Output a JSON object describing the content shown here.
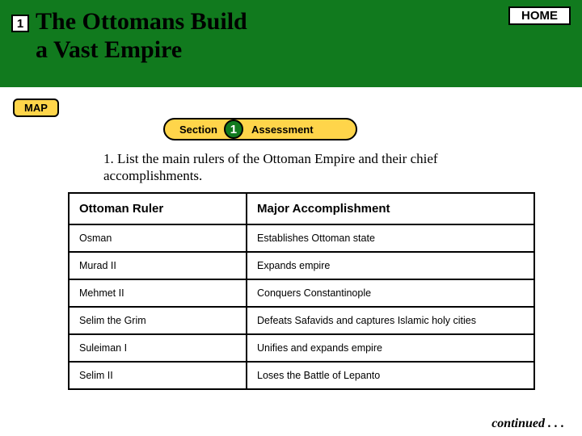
{
  "header": {
    "chapter_number": "1",
    "title_line1": "The Ottomans Build",
    "title_line2": "a Vast Empire",
    "home_label": "HOME"
  },
  "map_button": "MAP",
  "section_pill": {
    "left": "Section",
    "number": "1",
    "right": "Assessment"
  },
  "question": "1. List the main rulers of the Ottoman Empire and their chief accomplishments.",
  "table": {
    "headers": {
      "ruler": "Ottoman Ruler",
      "accomplishment": "Major Accomplishment"
    },
    "rows": [
      {
        "ruler": "Osman",
        "accomplishment": "Establishes Ottoman state"
      },
      {
        "ruler": "Murad II",
        "accomplishment": "Expands empire"
      },
      {
        "ruler": "Mehmet II",
        "accomplishment": "Conquers Constantinople"
      },
      {
        "ruler": "Selim the Grim",
        "accomplishment": "Defeats Safavids and captures Islamic holy cities"
      },
      {
        "ruler": "Suleiman I",
        "accomplishment": "Unifies and expands empire"
      },
      {
        "ruler": "Selim II",
        "accomplishment": "Loses the Battle of Lepanto"
      }
    ]
  },
  "continued": "continued . . .",
  "colors": {
    "header_bg": "#117a1e",
    "accent_yellow": "#ffd54a"
  }
}
